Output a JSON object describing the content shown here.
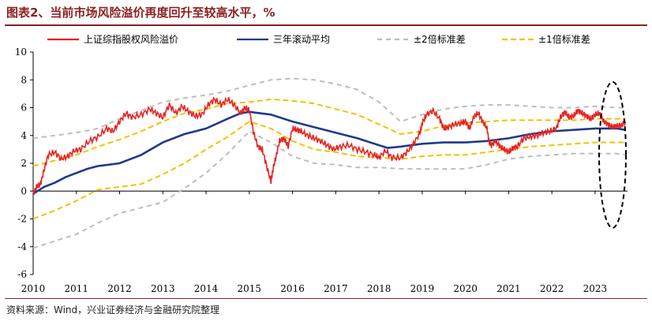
{
  "header": {
    "title": "图表2、当前市场风险溢价再度回升至较高水平，%"
  },
  "footer": {
    "source": "资料来源：Wind，兴业证券经济与金融研究院整理"
  },
  "colors": {
    "premium": "#e52421",
    "rolling": "#1f3a8a",
    "band2": "#bdbdbd",
    "band1": "#f5c000",
    "title": "#8b1f1f",
    "ellipse": "#000000"
  },
  "chart_data": {
    "type": "line",
    "title": "",
    "xlabel": "",
    "ylabel": "",
    "xlim": [
      2010.0,
      2023.75
    ],
    "ylim": [
      -6,
      10
    ],
    "y_ticks": [
      -6,
      -4,
      -2,
      0,
      2,
      4,
      6,
      8,
      10
    ],
    "x_tick_labels": [
      "2010",
      "2011",
      "2012",
      "2013",
      "2014",
      "2015",
      "2016",
      "2017",
      "2018",
      "2019",
      "2020",
      "2021",
      "2022",
      "2023"
    ],
    "grid": false,
    "legend_position": "top",
    "annotation": "dashed ellipse highlighting the latest period (2023)",
    "series": [
      {
        "name": "上证综指股权风险溢价",
        "color": "#e52421",
        "style": "solid",
        "x": [
          2010.0,
          2010.08,
          2010.17,
          2010.25,
          2010.35,
          2010.5,
          2010.65,
          2010.8,
          2010.95,
          2011.1,
          2011.3,
          2011.5,
          2011.7,
          2011.85,
          2012.0,
          2012.15,
          2012.3,
          2012.5,
          2012.7,
          2012.85,
          2013.0,
          2013.15,
          2013.3,
          2013.45,
          2013.6,
          2013.75,
          2013.9,
          2014.05,
          2014.2,
          2014.35,
          2014.5,
          2014.65,
          2014.8,
          2014.9,
          2015.0,
          2015.1,
          2015.2,
          2015.3,
          2015.4,
          2015.5,
          2015.55,
          2015.62,
          2015.7,
          2015.8,
          2015.9,
          2016.0,
          2016.1,
          2016.2,
          2016.35,
          2016.5,
          2016.65,
          2016.8,
          2016.95,
          2017.1,
          2017.3,
          2017.5,
          2017.7,
          2017.9,
          2018.0,
          2018.15,
          2018.3,
          2018.5,
          2018.65,
          2018.8,
          2018.95,
          2019.0,
          2019.1,
          2019.25,
          2019.4,
          2019.5,
          2019.6,
          2019.75,
          2019.9,
          2020.0,
          2020.1,
          2020.2,
          2020.3,
          2020.4,
          2020.5,
          2020.55,
          2020.6,
          2020.7,
          2020.8,
          2020.9,
          2021.0,
          2021.1,
          2021.2,
          2021.35,
          2021.5,
          2021.65,
          2021.8,
          2021.95,
          2022.1,
          2022.2,
          2022.3,
          2022.4,
          2022.5,
          2022.6,
          2022.7,
          2022.8,
          2022.9,
          2023.0,
          2023.1,
          2023.2,
          2023.3,
          2023.4,
          2023.5,
          2023.6,
          2023.7
        ],
        "y": [
          -0.2,
          0.3,
          0.5,
          1.5,
          2.6,
          2.8,
          2.3,
          2.5,
          2.9,
          3.0,
          3.6,
          3.9,
          4.5,
          4.3,
          5.0,
          5.6,
          5.3,
          5.5,
          5.9,
          5.6,
          5.3,
          6.2,
          5.6,
          6.1,
          5.7,
          5.4,
          5.5,
          6.2,
          6.6,
          6.2,
          6.6,
          6.2,
          5.6,
          6.0,
          5.8,
          4.2,
          3.2,
          3.0,
          1.8,
          0.7,
          1.6,
          2.5,
          3.6,
          3.8,
          3.2,
          4.5,
          4.4,
          4.3,
          4.0,
          3.8,
          3.6,
          3.3,
          3.0,
          3.2,
          3.3,
          3.0,
          2.8,
          2.6,
          2.4,
          2.9,
          2.4,
          2.4,
          2.8,
          3.4,
          4.2,
          4.9,
          5.5,
          5.8,
          5.2,
          4.5,
          4.6,
          4.8,
          4.9,
          5.0,
          4.5,
          5.4,
          5.6,
          5.0,
          4.5,
          3.5,
          3.3,
          3.6,
          3.2,
          3.0,
          2.8,
          3.1,
          3.2,
          3.8,
          3.9,
          4.0,
          4.2,
          4.3,
          4.5,
          5.3,
          5.7,
          5.3,
          5.4,
          5.8,
          5.6,
          5.4,
          5.2,
          5.5,
          5.6,
          5.0,
          4.8,
          4.6,
          4.7,
          4.7,
          5.0
        ]
      },
      {
        "name": "三年滚动平均",
        "color": "#1f3a8a",
        "style": "solid",
        "x": [
          2010.0,
          2010.25,
          2010.5,
          2010.75,
          2011.0,
          2011.25,
          2011.5,
          2011.75,
          2012.0,
          2012.5,
          2013.0,
          2013.5,
          2014.0,
          2014.5,
          2014.8,
          2015.0,
          2015.5,
          2016.0,
          2016.5,
          2017.0,
          2017.5,
          2018.0,
          2018.2,
          2018.5,
          2019.0,
          2019.5,
          2020.0,
          2020.5,
          2021.0,
          2021.5,
          2022.0,
          2022.5,
          2023.0,
          2023.5,
          2023.7
        ],
        "y": [
          -0.2,
          0.3,
          0.6,
          1.0,
          1.3,
          1.6,
          1.8,
          1.9,
          2.0,
          2.6,
          3.5,
          4.1,
          4.5,
          5.2,
          5.6,
          5.7,
          5.5,
          5.0,
          4.6,
          4.2,
          3.8,
          3.3,
          3.1,
          3.2,
          3.4,
          3.5,
          3.5,
          3.6,
          3.8,
          4.1,
          4.3,
          4.4,
          4.5,
          4.5,
          4.4
        ]
      },
      {
        "name": "±2倍标准差",
        "color": "#bdbdbd",
        "style": "dashed",
        "x": [
          2010.0,
          2010.5,
          2011.0,
          2011.5,
          2012.0,
          2012.5,
          2013.0,
          2013.5,
          2014.0,
          2014.5,
          2015.0,
          2015.5,
          2016.0,
          2016.5,
          2017.0,
          2017.5,
          2018.0,
          2018.5,
          2019.0,
          2019.5,
          2020.0,
          2020.5,
          2021.0,
          2021.5,
          2022.0,
          2022.5,
          2023.0,
          2023.5,
          2023.7
        ],
        "y": [
          3.8,
          4.0,
          4.2,
          4.5,
          5.2,
          5.8,
          6.4,
          6.7,
          6.9,
          7.2,
          7.6,
          8.0,
          8.1,
          8.0,
          7.7,
          7.3,
          6.4,
          5.0,
          5.5,
          5.9,
          6.1,
          6.2,
          6.2,
          6.1,
          6.0,
          6.0,
          6.1,
          6.0,
          6.0
        ],
        "y_lower": [
          -4.1,
          -3.6,
          -3.1,
          -2.3,
          -1.6,
          -1.2,
          -0.8,
          0.2,
          1.3,
          2.7,
          4.3,
          3.5,
          2.5,
          2.0,
          1.9,
          1.7,
          1.7,
          1.6,
          1.6,
          1.6,
          1.6,
          1.9,
          2.3,
          2.5,
          2.6,
          2.7,
          2.7,
          2.7,
          2.6
        ]
      },
      {
        "name": "±1倍标准差",
        "color": "#f5c000",
        "style": "dashed",
        "x": [
          2010.0,
          2010.5,
          2011.0,
          2011.5,
          2012.0,
          2012.5,
          2013.0,
          2013.5,
          2014.0,
          2014.5,
          2015.0,
          2015.5,
          2016.0,
          2016.5,
          2017.0,
          2017.5,
          2018.0,
          2018.5,
          2019.0,
          2019.5,
          2020.0,
          2020.5,
          2021.0,
          2021.5,
          2022.0,
          2022.5,
          2023.0,
          2023.5,
          2023.7
        ],
        "y": [
          1.8,
          2.2,
          2.6,
          3.2,
          3.7,
          4.3,
          5.0,
          5.6,
          5.9,
          6.3,
          6.4,
          6.6,
          6.5,
          6.3,
          5.9,
          5.5,
          4.8,
          4.1,
          4.3,
          4.7,
          4.9,
          5.0,
          5.1,
          5.1,
          5.1,
          5.1,
          5.2,
          5.2,
          5.2
        ],
        "y_lower": [
          -2.0,
          -1.4,
          -0.7,
          0.1,
          0.3,
          0.5,
          1.2,
          2.0,
          3.0,
          3.9,
          5.0,
          4.5,
          3.6,
          3.0,
          2.8,
          2.5,
          2.4,
          2.3,
          2.5,
          2.6,
          2.6,
          2.8,
          3.0,
          3.2,
          3.3,
          3.4,
          3.5,
          3.5,
          3.5
        ]
      }
    ]
  }
}
